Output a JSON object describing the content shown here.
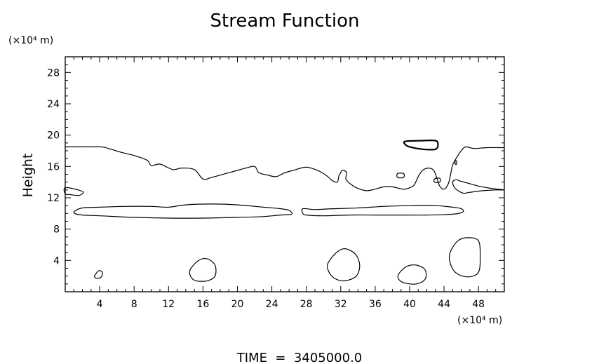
{
  "chart_data": {
    "type": "contour",
    "title": "Stream Function",
    "ylabel": "Height",
    "y_unit": "(×10⁴ m)",
    "x_unit": "(×10⁴ m)",
    "xlim": [
      0,
      51
    ],
    "ylim": [
      0,
      30
    ],
    "x_ticks": [
      4,
      8,
      12,
      16,
      20,
      24,
      28,
      32,
      36,
      40,
      44,
      48
    ],
    "y_ticks": [
      4,
      8,
      12,
      16,
      20,
      24,
      28
    ],
    "grid": false,
    "footer": "TIME  =  3405000.0",
    "contours": [
      {
        "id": "upper-boundary",
        "closed": false,
        "points": [
          [
            0,
            18.5
          ],
          [
            4,
            18.5
          ],
          [
            5,
            18.3
          ],
          [
            6.5,
            17.8
          ],
          [
            8,
            17.4
          ],
          [
            9.5,
            16.8
          ],
          [
            10,
            16.1
          ],
          [
            11,
            16.3
          ],
          [
            12.5,
            15.6
          ],
          [
            13.5,
            15.8
          ],
          [
            15,
            15.6
          ],
          [
            16,
            14.4
          ],
          [
            17,
            14.6
          ],
          [
            19,
            15.2
          ],
          [
            20,
            15.5
          ],
          [
            21,
            15.8
          ],
          [
            22,
            16.0
          ],
          [
            22.5,
            15.2
          ],
          [
            23.5,
            14.9
          ],
          [
            24.5,
            14.7
          ],
          [
            25.5,
            15.2
          ],
          [
            26.5,
            15.5
          ],
          [
            28,
            15.9
          ],
          [
            29.5,
            15.4
          ],
          [
            30.5,
            14.7
          ],
          [
            31,
            14.2
          ],
          [
            31.6,
            14.0
          ],
          [
            31.8,
            14.8
          ],
          [
            32.2,
            15.5
          ],
          [
            32.7,
            15.2
          ],
          [
            32.6,
            14.4
          ],
          [
            33.2,
            13.7
          ],
          [
            34,
            13.2
          ],
          [
            35,
            12.9
          ],
          [
            36,
            13.1
          ],
          [
            37,
            13.4
          ],
          [
            38,
            13.4
          ],
          [
            39.2,
            13.1
          ],
          [
            39.8,
            13.2
          ],
          [
            40.5,
            13.6
          ],
          [
            41,
            14.7
          ],
          [
            41.5,
            15.5
          ],
          [
            42.2,
            15.8
          ],
          [
            42.8,
            15.5
          ],
          [
            43.2,
            14.4
          ],
          [
            43.5,
            13.5
          ],
          [
            44,
            13.1
          ],
          [
            44.5,
            13.8
          ],
          [
            44.8,
            15.2
          ],
          [
            45,
            16.2
          ],
          [
            45.5,
            17.2
          ],
          [
            46,
            18.0
          ],
          [
            46.5,
            18.5
          ],
          [
            47.5,
            18.3
          ],
          [
            49,
            18.4
          ],
          [
            51,
            18.4
          ]
        ]
      },
      {
        "id": "right-lobe",
        "closed": true,
        "points": [
          [
            51,
            13.0
          ],
          [
            49.5,
            13.2
          ],
          [
            48,
            13.5
          ],
          [
            47,
            13.8
          ],
          [
            46,
            14.1
          ],
          [
            45.4,
            14.3
          ],
          [
            45.0,
            14.0
          ],
          [
            45.3,
            13.2
          ],
          [
            46.2,
            12.6
          ],
          [
            47,
            12.7
          ],
          [
            48.5,
            12.9
          ],
          [
            50,
            13.0
          ]
        ]
      },
      {
        "id": "left-small",
        "closed": true,
        "points": [
          [
            0,
            13.3
          ],
          [
            1.5,
            13.0
          ],
          [
            2.1,
            12.7
          ],
          [
            1.6,
            12.3
          ],
          [
            0.6,
            12.4
          ],
          [
            0,
            12.5
          ]
        ]
      },
      {
        "id": "band-left",
        "closed": true,
        "points": [
          [
            1.1,
            10.3
          ],
          [
            2,
            10.7
          ],
          [
            4,
            10.8
          ],
          [
            7,
            10.9
          ],
          [
            10,
            10.9
          ],
          [
            12,
            10.8
          ],
          [
            14,
            11.1
          ],
          [
            17,
            11.2
          ],
          [
            20,
            11.1
          ],
          [
            23,
            10.8
          ],
          [
            25,
            10.6
          ],
          [
            26,
            10.4
          ],
          [
            26.3,
            9.9
          ],
          [
            25,
            9.8
          ],
          [
            23,
            9.6
          ],
          [
            20,
            9.5
          ],
          [
            16,
            9.4
          ],
          [
            12,
            9.4
          ],
          [
            8,
            9.5
          ],
          [
            4,
            9.7
          ],
          [
            2,
            9.8
          ],
          [
            1.1,
            10.0
          ]
        ]
      },
      {
        "id": "band-right",
        "closed": true,
        "points": [
          [
            27.6,
            10.6
          ],
          [
            29,
            10.5
          ],
          [
            31,
            10.6
          ],
          [
            34,
            10.7
          ],
          [
            37,
            10.9
          ],
          [
            40,
            11.0
          ],
          [
            43,
            11.0
          ],
          [
            45,
            10.8
          ],
          [
            46,
            10.6
          ],
          [
            46.2,
            10.2
          ],
          [
            45,
            9.9
          ],
          [
            42,
            9.8
          ],
          [
            39,
            9.8
          ],
          [
            36,
            9.8
          ],
          [
            33,
            9.8
          ],
          [
            30,
            9.7
          ],
          [
            28,
            9.8
          ],
          [
            27.6,
            10.0
          ]
        ]
      },
      {
        "id": "blob-2",
        "closed": true,
        "points": [
          [
            3.5,
            2.2
          ],
          [
            3.9,
            2.7
          ],
          [
            4.3,
            2.5
          ],
          [
            4.2,
            1.9
          ],
          [
            3.7,
            1.7
          ],
          [
            3.4,
            1.9
          ]
        ]
      },
      {
        "id": "blob-16",
        "closed": true,
        "points": [
          [
            14.5,
            2.8
          ],
          [
            15.5,
            4.0
          ],
          [
            16.5,
            4.2
          ],
          [
            17.4,
            3.4
          ],
          [
            17.4,
            2.0
          ],
          [
            16.5,
            1.4
          ],
          [
            15.2,
            1.4
          ],
          [
            14.6,
            1.9
          ]
        ]
      },
      {
        "id": "blob-32",
        "closed": true,
        "points": [
          [
            30.5,
            3.6
          ],
          [
            31.5,
            5.0
          ],
          [
            32.5,
            5.5
          ],
          [
            33.7,
            4.8
          ],
          [
            34.2,
            3.4
          ],
          [
            33.8,
            2.0
          ],
          [
            32.5,
            1.4
          ],
          [
            31.3,
            1.7
          ],
          [
            30.6,
            2.6
          ]
        ]
      },
      {
        "id": "blob-40",
        "closed": true,
        "points": [
          [
            38.7,
            2.2
          ],
          [
            39.6,
            3.2
          ],
          [
            40.8,
            3.4
          ],
          [
            41.8,
            2.8
          ],
          [
            41.8,
            1.6
          ],
          [
            40.8,
            1.0
          ],
          [
            39.5,
            1.1
          ],
          [
            38.8,
            1.5
          ]
        ]
      },
      {
        "id": "blob-46",
        "closed": true,
        "points": [
          [
            44.7,
            5.0
          ],
          [
            45.6,
            6.5
          ],
          [
            46.8,
            6.9
          ],
          [
            48,
            6.5
          ],
          [
            48.2,
            4.5
          ],
          [
            48,
            2.5
          ],
          [
            46.8,
            1.9
          ],
          [
            45.4,
            2.4
          ],
          [
            44.7,
            3.7
          ]
        ]
      },
      {
        "id": "cell-upper-right",
        "closed": true,
        "thick": true,
        "points": [
          [
            39.5,
            19.2
          ],
          [
            41.5,
            19.3
          ],
          [
            43,
            19.3
          ],
          [
            43.3,
            18.8
          ],
          [
            43.0,
            18.2
          ],
          [
            41.5,
            18.2
          ],
          [
            40,
            18.5
          ],
          [
            39.5,
            18.8
          ]
        ]
      },
      {
        "id": "tiny-a",
        "closed": true,
        "points": [
          [
            38.6,
            15.1
          ],
          [
            39.3,
            15.1
          ],
          [
            39.3,
            14.6
          ],
          [
            38.6,
            14.6
          ]
        ]
      },
      {
        "id": "tiny-b",
        "closed": true,
        "points": [
          [
            42.9,
            14.4
          ],
          [
            43.5,
            14.5
          ],
          [
            43.5,
            14.0
          ],
          [
            42.9,
            14.0
          ]
        ]
      },
      {
        "id": "tiny-c",
        "closed": true,
        "points": [
          [
            45.3,
            16.7
          ],
          [
            45.45,
            16.7
          ],
          [
            45.45,
            16.3
          ],
          [
            45.3,
            16.3
          ]
        ]
      }
    ]
  }
}
